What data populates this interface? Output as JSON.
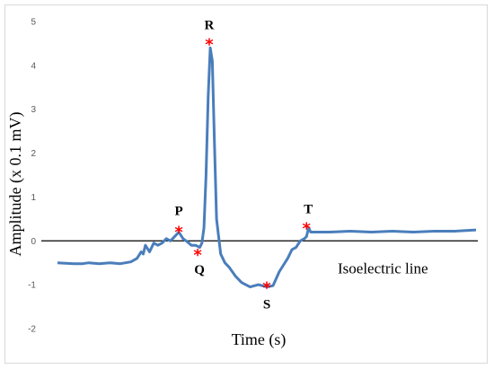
{
  "chart_data": {
    "type": "line",
    "title": "",
    "xlabel": "Time (s)",
    "ylabel": "Amplitude (x 0.1 mV)",
    "ylim": [
      -2,
      5
    ],
    "yticks": [
      "5",
      "4",
      "3",
      "2",
      "1",
      "0",
      "-1",
      "-2"
    ],
    "x_ticks_shown": false,
    "grid": false,
    "baseline_label": "Isoelectric line",
    "series": [
      {
        "color": "#4a7ebb",
        "x": [
          0,
          8,
          12,
          15,
          20,
          25,
          30,
          35,
          38,
          40,
          41,
          42,
          44,
          46,
          48,
          50,
          52,
          54,
          56,
          58,
          60,
          62,
          64,
          66,
          68,
          69,
          70,
          71,
          72,
          73,
          74,
          75,
          76,
          77,
          78,
          80,
          82,
          85,
          88,
          92,
          96,
          100,
          103,
          106,
          110,
          112,
          114,
          116,
          118,
          119,
          120,
          121,
          122,
          125,
          130,
          140,
          150,
          160,
          170,
          180,
          190,
          200
        ],
        "values": [
          -0.5,
          -0.52,
          -0.52,
          -0.5,
          -0.52,
          -0.5,
          -0.52,
          -0.48,
          -0.4,
          -0.25,
          -0.3,
          -0.1,
          -0.25,
          -0.05,
          -0.1,
          -0.05,
          0.05,
          0.0,
          0.1,
          0.2,
          0.05,
          -0.02,
          -0.1,
          -0.1,
          -0.15,
          -0.05,
          0.3,
          1.5,
          3.3,
          4.4,
          4.1,
          2.2,
          0.5,
          0.1,
          -0.3,
          -0.5,
          -0.6,
          -0.8,
          -0.95,
          -1.05,
          -1.0,
          -1.05,
          -1.02,
          -0.7,
          -0.4,
          -0.2,
          -0.15,
          0.0,
          0.05,
          0.1,
          0.3,
          0.2,
          0.2,
          0.2,
          0.2,
          0.22,
          0.2,
          0.22,
          0.2,
          0.22,
          0.22,
          0.25
        ]
      }
    ],
    "points": [
      {
        "label": "P",
        "x": 58,
        "y": 0.22
      },
      {
        "label": "Q",
        "x": 67,
        "y": -0.3
      },
      {
        "label": "R",
        "x": 72.5,
        "y": 4.5
      },
      {
        "label": "S",
        "x": 100,
        "y": -1.05
      },
      {
        "label": "T",
        "x": 119,
        "y": 0.3
      }
    ],
    "colors": {
      "line": "#4a7ebb",
      "marker": "#ff0000",
      "baseline": "#000000",
      "tick": "#595959"
    }
  }
}
